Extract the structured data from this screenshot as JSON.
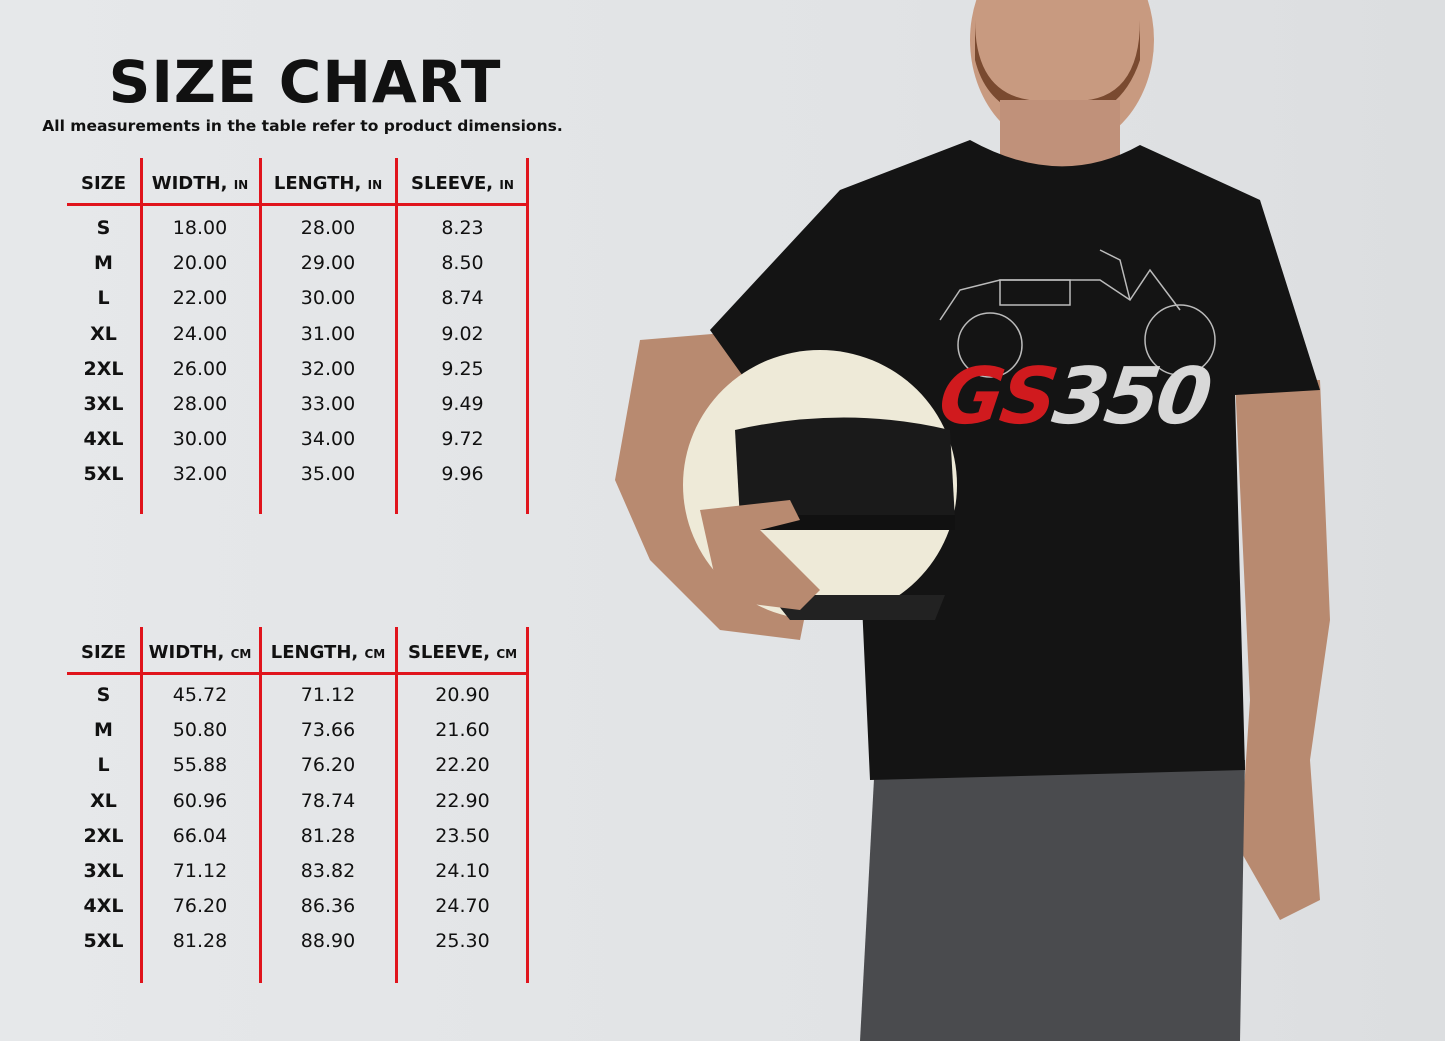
{
  "title": "SIZE CHART",
  "subtitle": "All measurements in the table refer to product dimensions.",
  "colors": {
    "accent": "#e0141c",
    "background": "#e3e5e7",
    "shirt": "#111111"
  },
  "product_logo": {
    "red": "GS",
    "white": "350"
  },
  "tables": [
    {
      "unit": "IN",
      "headers": [
        "SIZE",
        "WIDTH,",
        "LENGTH,",
        "SLEEVE,"
      ],
      "rows": [
        [
          "S",
          "18.00",
          "28.00",
          "8.23"
        ],
        [
          "M",
          "20.00",
          "29.00",
          "8.50"
        ],
        [
          "L",
          "22.00",
          "30.00",
          "8.74"
        ],
        [
          "XL",
          "24.00",
          "31.00",
          "9.02"
        ],
        [
          "2XL",
          "26.00",
          "32.00",
          "9.25"
        ],
        [
          "3XL",
          "28.00",
          "33.00",
          "9.49"
        ],
        [
          "4XL",
          "30.00",
          "34.00",
          "9.72"
        ],
        [
          "5XL",
          "32.00",
          "35.00",
          "9.96"
        ]
      ]
    },
    {
      "unit": "CM",
      "headers": [
        "SIZE",
        "WIDTH,",
        "LENGTH,",
        "SLEEVE,"
      ],
      "rows": [
        [
          "S",
          "45.72",
          "71.12",
          "20.90"
        ],
        [
          "M",
          "50.80",
          "73.66",
          "21.60"
        ],
        [
          "L",
          "55.88",
          "76.20",
          "22.20"
        ],
        [
          "XL",
          "60.96",
          "78.74",
          "22.90"
        ],
        [
          "2XL",
          "66.04",
          "81.28",
          "23.50"
        ],
        [
          "3XL",
          "71.12",
          "83.82",
          "24.10"
        ],
        [
          "4XL",
          "76.20",
          "86.36",
          "24.70"
        ],
        [
          "5XL",
          "81.28",
          "88.90",
          "25.30"
        ]
      ]
    }
  ]
}
